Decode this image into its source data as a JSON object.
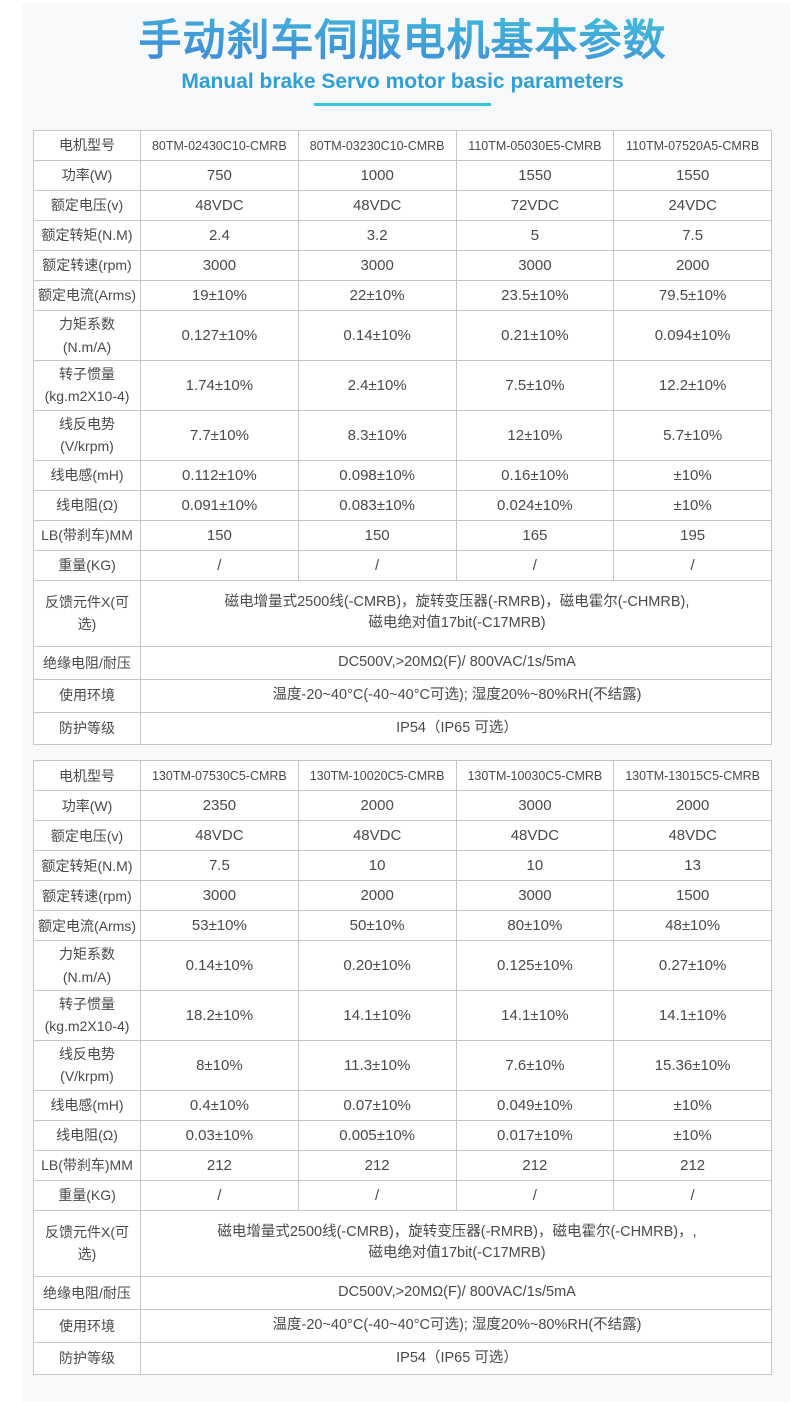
{
  "page": {
    "title_cn": "手动刹车伺服电机基本参数",
    "title_en": "Manual brake Servo motor basic parameters",
    "colors": {
      "title_gradient_top": "#43cbd9",
      "title_gradient_bottom": "#3e87d9",
      "subtitle": "#2f9fd8",
      "underline": "#38c4d8",
      "table_border": "#c6c6c6",
      "table_text": "#4a4a4a",
      "page_background": "#f8f9fa"
    }
  },
  "tables": [
    {
      "model_label": "电机型号",
      "models": [
        "80TM-02430C10-CMRB",
        "80TM-03230C10-CMRB",
        "110TM-05030E5-CMRB",
        "110TM-07520A5-CMRB"
      ],
      "rows": [
        {
          "label": "功率(W)",
          "values": [
            "750",
            "1000",
            "1550",
            "1550"
          ]
        },
        {
          "label": "额定电压(v)",
          "values": [
            "48VDC",
            "48VDC",
            "72VDC",
            "24VDC"
          ]
        },
        {
          "label": "额定转矩(N.M)",
          "values": [
            "2.4",
            "3.2",
            "5",
            "7.5"
          ]
        },
        {
          "label": "额定转速(rpm)",
          "values": [
            "3000",
            "3000",
            "3000",
            "2000"
          ]
        },
        {
          "label": "额定电流(Arms)",
          "values": [
            "19±10%",
            "22±10%",
            "23.5±10%",
            "79.5±10%"
          ]
        },
        {
          "label": "力矩系数\n(N.m/A)",
          "values": [
            "0.127±10%",
            "0.14±10%",
            "0.21±10%",
            "0.094±10%"
          ]
        },
        {
          "label": "转子惯量\n(kg.m2X10-4)",
          "values": [
            "1.74±10%",
            "2.4±10%",
            "7.5±10%",
            "12.2±10%"
          ]
        },
        {
          "label": "线反电势\n(V/krpm)",
          "values": [
            "7.7±10%",
            "8.3±10%",
            "12±10%",
            "5.7±10%"
          ]
        },
        {
          "label": "线电感(mH)",
          "values": [
            "0.112±10%",
            "0.098±10%",
            "0.16±10%",
            "±10%"
          ]
        },
        {
          "label": "线电阻(Ω)",
          "values": [
            "0.091±10%",
            "0.083±10%",
            "0.024±10%",
            "±10%"
          ]
        },
        {
          "label": "LB(带刹车)MM",
          "values": [
            "150",
            "150",
            "165",
            "195"
          ]
        },
        {
          "label": "重量(KG)",
          "values": [
            "/",
            "/",
            "/",
            "/"
          ]
        }
      ],
      "full_rows": [
        {
          "label": "反馈元件X(可选)",
          "value": "磁电增量式2500线(-CMRB)，旋转变压器(-RMRB)，磁电霍尔(-CHMRB),\n磁电绝对值17bit(-C17MRB)"
        },
        {
          "label": "绝缘电阻/耐压",
          "value": "DC500V,>20MΩ(F)/ 800VAC/1s/5mA"
        },
        {
          "label": "使用环境",
          "value": "温度-20~40°C(-40~40°C可选); 湿度20%~80%RH(不结露)"
        },
        {
          "label": "防护等级",
          "value": "IP54（IP65 可选）"
        }
      ]
    },
    {
      "model_label": "电机型号",
      "models": [
        "130TM-07530C5-CMRB",
        "130TM-10020C5-CMRB",
        "130TM-10030C5-CMRB",
        "130TM-13015C5-CMRB"
      ],
      "rows": [
        {
          "label": "功率(W)",
          "values": [
            "2350",
            "2000",
            "3000",
            "2000"
          ]
        },
        {
          "label": "额定电压(v)",
          "values": [
            "48VDC",
            "48VDC",
            "48VDC",
            "48VDC"
          ]
        },
        {
          "label": "额定转矩(N.M)",
          "values": [
            "7.5",
            "10",
            "10",
            "13"
          ]
        },
        {
          "label": "额定转速(rpm)",
          "values": [
            "3000",
            "2000",
            "3000",
            "1500"
          ]
        },
        {
          "label": "额定电流(Arms)",
          "values": [
            "53±10%",
            "50±10%",
            "80±10%",
            "48±10%"
          ]
        },
        {
          "label": "力矩系数\n(N.m/A)",
          "values": [
            "0.14±10%",
            "0.20±10%",
            "0.125±10%",
            "0.27±10%"
          ]
        },
        {
          "label": "转子惯量\n(kg.m2X10-4)",
          "values": [
            "18.2±10%",
            "14.1±10%",
            "14.1±10%",
            "14.1±10%"
          ]
        },
        {
          "label": "线反电势\n(V/krpm)",
          "values": [
            "8±10%",
            "11.3±10%",
            "7.6±10%",
            "15.36±10%"
          ]
        },
        {
          "label": "线电感(mH)",
          "values": [
            "0.4±10%",
            "0.07±10%",
            "0.049±10%",
            "±10%"
          ]
        },
        {
          "label": "线电阻(Ω)",
          "values": [
            "0.03±10%",
            "0.005±10%",
            "0.017±10%",
            "±10%"
          ]
        },
        {
          "label": "LB(带刹车)MM",
          "values": [
            "212",
            "212",
            "212",
            "212"
          ]
        },
        {
          "label": "重量(KG)",
          "values": [
            "/",
            "/",
            "/",
            "/"
          ]
        }
      ],
      "full_rows": [
        {
          "label": "反馈元件X(可选)",
          "value": "磁电增量式2500线(-CMRB)，旋转变压器(-RMRB)，磁电霍尔(-CHMRB)，,\n磁电绝对值17bit(-C17MRB)"
        },
        {
          "label": "绝缘电阻/耐压",
          "value": "DC500V,>20MΩ(F)/ 800VAC/1s/5mA"
        },
        {
          "label": "使用环境",
          "value": "温度-20~40°C(-40~40°C可选); 湿度20%~80%RH(不结露)"
        },
        {
          "label": "防护等级",
          "value": "IP54（IP65 可选）"
        }
      ]
    }
  ]
}
